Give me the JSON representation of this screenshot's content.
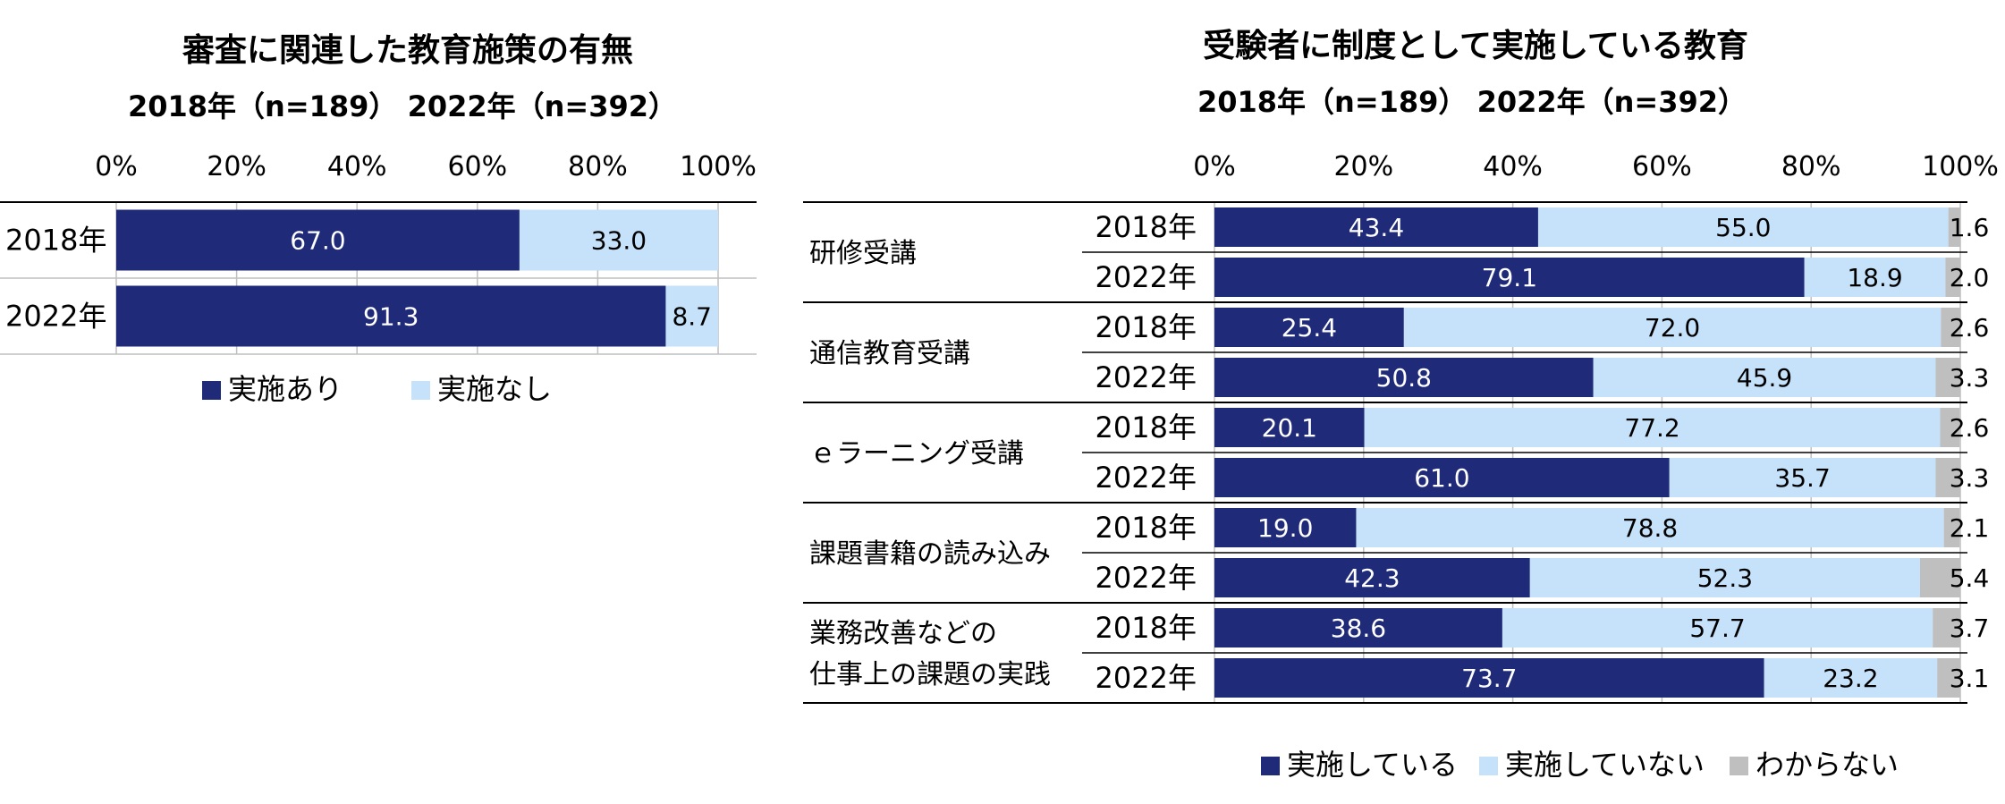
{
  "colors": {
    "implemented": "#1f2a78",
    "not_implemented": "#c6e2fa",
    "unknown": "#bfbfbf",
    "axis": "#000000",
    "grid": "#bfbfbf"
  },
  "chart_data": [
    {
      "type": "bar",
      "orientation": "horizontal",
      "stacked": true,
      "title": "審査に関連した教育施策の有無",
      "subtitle": "2018年（n=189） 2022年（n=392）",
      "categories": [
        "2018年",
        "2022年"
      ],
      "series": [
        {
          "name": "実施あり",
          "values": [
            67.0,
            91.3
          ],
          "labels": [
            "67.0",
            "91.3"
          ]
        },
        {
          "name": "実施なし",
          "values": [
            33.0,
            8.7
          ],
          "labels": [
            "33.0",
            "8.7"
          ]
        }
      ],
      "xlim": [
        0,
        100
      ],
      "xticks": [
        "0%",
        "20%",
        "40%",
        "60%",
        "80%",
        "100%"
      ],
      "legend": "bottom",
      "grid": true
    },
    {
      "type": "bar",
      "orientation": "horizontal",
      "stacked": true,
      "title": "受験者に制度として実施している教育",
      "subtitle": "2018年（n=189） 2022年（n=392）",
      "groups": [
        {
          "name": [
            "研修受講"
          ]
        },
        {
          "name": [
            "通信教育受講"
          ]
        },
        {
          "name": [
            "ｅラーニング受講"
          ]
        },
        {
          "name": [
            "課題書籍の読み込み"
          ]
        },
        {
          "name": [
            "業務改善などの",
            "仕事上の課題の実践"
          ]
        }
      ],
      "years": [
        "2018年",
        "2022年"
      ],
      "series": [
        {
          "name": "実施している",
          "values": [
            43.4,
            79.1,
            25.4,
            50.8,
            20.1,
            61.0,
            19.0,
            42.3,
            38.6,
            73.7
          ],
          "labels": [
            "43.4",
            "79.1",
            "25.4",
            "50.8",
            "20.1",
            "61.0",
            "19.0",
            "42.3",
            "38.6",
            "73.7"
          ]
        },
        {
          "name": "実施していない",
          "values": [
            55.0,
            18.9,
            72.0,
            45.9,
            77.2,
            35.7,
            78.8,
            52.3,
            57.7,
            23.2
          ],
          "labels": [
            "55.0",
            "18.9",
            "72.0",
            "45.9",
            "77.2",
            "35.7",
            "78.8",
            "52.3",
            "57.7",
            "23.2"
          ]
        },
        {
          "name": "わからない",
          "values": [
            1.6,
            2.0,
            2.6,
            3.3,
            2.6,
            3.3,
            2.1,
            5.4,
            3.7,
            3.1
          ],
          "labels": [
            "1.6",
            "2.0",
            "2.6",
            "3.3",
            "2.6",
            "3.3",
            "2.1",
            "5.4",
            "3.7",
            "3.1"
          ]
        }
      ],
      "xlim": [
        0,
        100
      ],
      "xticks": [
        "0%",
        "20%",
        "40%",
        "60%",
        "80%",
        "100%"
      ],
      "legend": "bottom",
      "grid": true
    }
  ]
}
